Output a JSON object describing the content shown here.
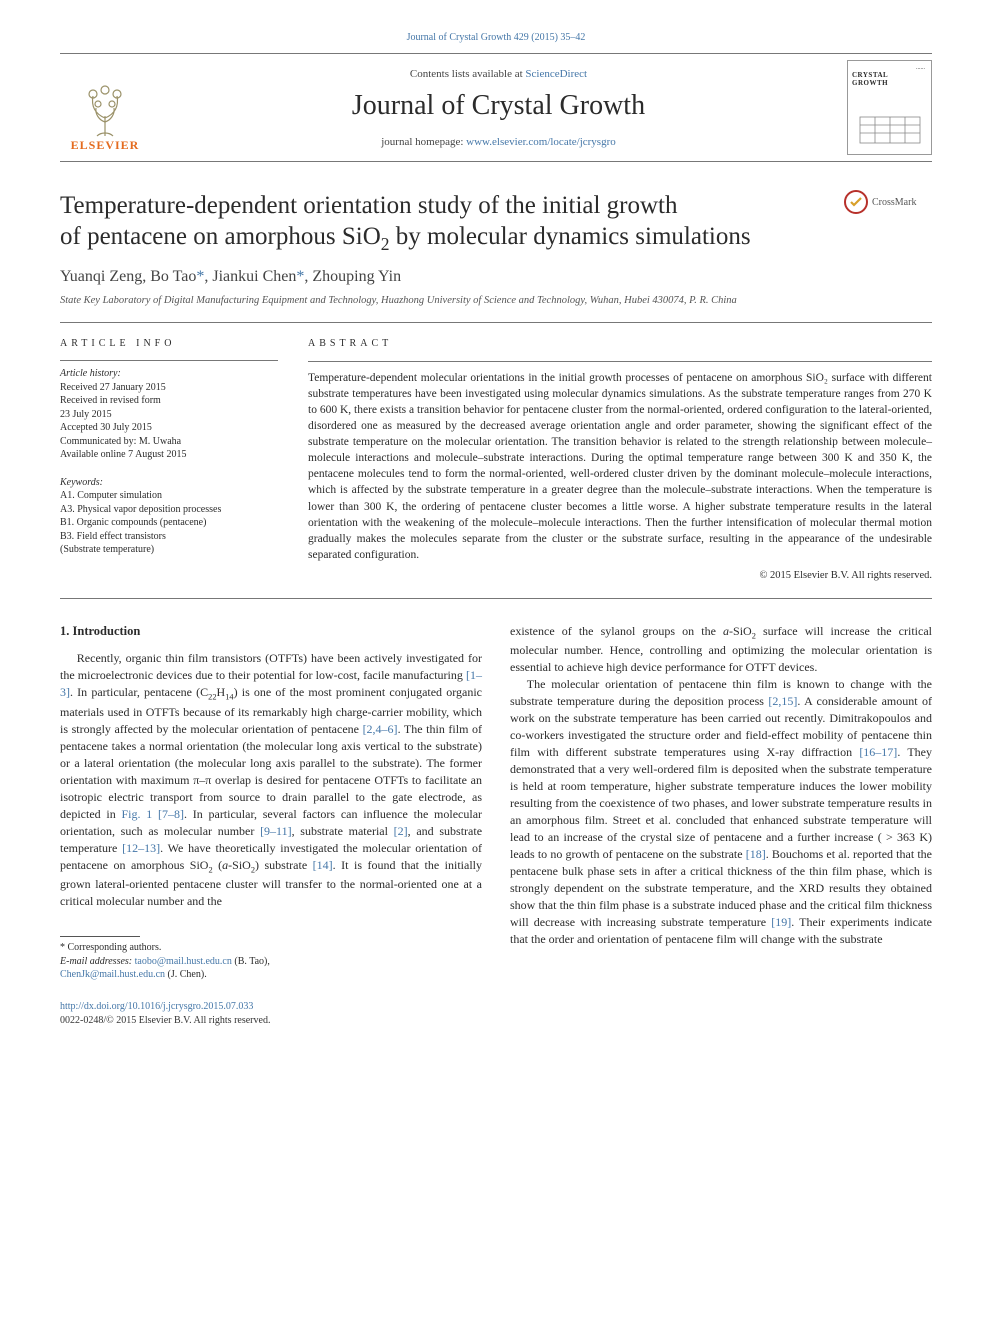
{
  "topLink": "Journal of Crystal Growth 429 (2015) 35–42",
  "masthead": {
    "contents_prefix": "Contents lists available at ",
    "contents_link": "ScienceDirect",
    "journal_title": "Journal of Crystal Growth",
    "homepage_prefix": "journal homepage: ",
    "homepage_link": "www.elsevier.com/locate/jcrysgro",
    "elsevier_label": "ELSEVIER",
    "cover_label": "CRYSTAL GROWTH",
    "cover_dots": "......"
  },
  "crossmark_label": "CrossMark",
  "title_line1": "Temperature-dependent orientation study of the initial growth",
  "title_line2_a": "of pentacene on amorphous SiO",
  "title_line2_b": " by molecular dynamics simulations",
  "title_sub": "2",
  "authors": {
    "a1": "Yuanqi Zeng, Bo Tao",
    "a2": ", Jiankui Chen",
    "a3": ", Zhouping Yin",
    "ast": "*"
  },
  "affiliation": "State Key Laboratory of Digital Manufacturing Equipment and Technology, Huazhong University of Science and Technology, Wuhan, Hubei 430074, P. R. China",
  "info_head": "article info",
  "abs_head": "abstract",
  "history_head": "Article history:",
  "history": [
    "Received 27 January 2015",
    "Received in revised form",
    "23 July 2015",
    "Accepted 30 July 2015",
    "Communicated by: M. Uwaha",
    "Available online 7 August 2015"
  ],
  "kw_head": "Keywords:",
  "keywords": [
    "A1. Computer simulation",
    "A3. Physical vapor deposition processes",
    "B1. Organic compounds (pentacene)",
    "B3. Field effect transistors",
    "(Substrate temperature)"
  ],
  "abstract_text": "Temperature-dependent molecular orientations in the initial growth processes of pentacene on amorphous SiO₂ surface with different substrate temperatures have been investigated using molecular dynamics simulations. As the substrate temperature ranges from 270 K to 600 K, there exists a transition behavior for pentacene cluster from the normal-oriented, ordered configuration to the lateral-oriented, disordered one as measured by the decreased average orientation angle and order parameter, showing the significant effect of the substrate temperature on the molecular orientation. The transition behavior is related to the strength relationship between molecule–molecule interactions and molecule–substrate interactions. During the optimal temperature range between 300 K and 350 K, the pentacene molecules tend to form the normal-oriented, well-ordered cluster driven by the dominant molecule–molecule interactions, which is affected by the substrate temperature in a greater degree than the molecule–substrate interactions. When the temperature is lower than 300 K, the ordering of pentacene cluster becomes a little worse. A higher substrate temperature results in the lateral orientation with the weakening of the molecule–molecule interactions. Then the further intensification of molecular thermal motion gradually makes the molecules separate from the cluster or the substrate surface, resulting in the appearance of the undesirable separated configuration.",
  "abs_copyright": "© 2015 Elsevier B.V. All rights reserved.",
  "intro_head": "1.  Introduction",
  "col1_html": "Recently, organic thin film transistors (OTFTs) have been actively investigated for the microelectronic devices due to their potential for low-cost, facile manufacturing <a class='ref' data-name='citation-link' data-interactable='true'>[1–3]</a>. In particular, pentacene (C<sub>22</sub>H<sub>14</sub>) is one of the most prominent conjugated organic materials used in OTFTs because of its remarkably high charge-carrier mobility, which is strongly affected by the molecular orientation of pentacene <a class='ref' data-name='citation-link' data-interactable='true'>[2,4–6]</a>. The thin film of pentacene takes a normal orientation (the molecular long axis vertical to the substrate) or a lateral orientation (the molecular long axis parallel to the substrate). The former orientation with maximum π–π overlap is desired for pentacene OTFTs to facilitate an isotropic electric transport from source to drain parallel to the gate electrode, as depicted in <a class='ref' data-name='figure-link' data-interactable='true'>Fig. 1</a> <a class='ref' data-name='citation-link' data-interactable='true'>[7–8]</a>. In particular, several factors can influence the molecular orientation, such as molecular number <a class='ref' data-name='citation-link' data-interactable='true'>[9–11]</a>, substrate material <a class='ref' data-name='citation-link' data-interactable='true'>[2]</a>, and substrate temperature <a class='ref' data-name='citation-link' data-interactable='true'>[12–13]</a>. We have theoretically investigated the molecular orientation of pentacene on amorphous SiO<sub>2</sub> (<i>a</i>-SiO<sub>2</sub>) substrate <a class='ref' data-name='citation-link' data-interactable='true'>[14]</a>. It is found that the initially grown lateral-oriented pentacene cluster will transfer to the normal-oriented one at a critical molecular number and the",
  "col2_p1_html": "existence of the sylanol groups on the <i>a</i>-SiO<sub>2</sub> surface will increase the critical molecular number. Hence, controlling and optimizing the molecular orientation is essential to achieve high device performance for OTFT devices.",
  "col2_p2_html": "The molecular orientation of pentacene thin film is known to change with the substrate temperature during the deposition process <a class='ref' data-name='citation-link' data-interactable='true'>[2,15]</a>. A considerable amount of work on the substrate temperature has been carried out recently. Dimitrakopoulos and co-workers investigated the structure order and field-effect mobility of pentacene thin film with different substrate temperatures using X-ray diffraction <a class='ref' data-name='citation-link' data-interactable='true'>[16–17]</a>. They demonstrated that a very well-ordered film is deposited when the substrate temperature is held at room temperature, higher substrate temperature induces the lower mobility resulting from the coexistence of two phases, and lower substrate temperature results in an amorphous film. Street et al. concluded that enhanced substrate temperature will lead to an increase of the crystal size of pentacene and a further increase ( > 363 K) leads to no growth of pentacene on the substrate <a class='ref' data-name='citation-link' data-interactable='true'>[18]</a>. Bouchoms et al. reported that the pentacene bulk phase sets in after a critical thickness of the thin film phase, which is strongly dependent on the substrate temperature, and the XRD results they obtained show that the thin film phase is a substrate induced phase and the critical film thickness will decrease with increasing substrate temperature <a class='ref' data-name='citation-link' data-interactable='true'>[19]</a>. Their experiments indicate that the order and orientation of pentacene film will change with the substrate",
  "footnote": {
    "corr": "* Corresponding authors.",
    "email_label": "E-mail addresses: ",
    "email1": "taobo@mail.hust.edu.cn",
    "email1_who": " (B. Tao),",
    "email2": "ChenJk@mail.hust.edu.cn",
    "email2_who": " (J. Chen)."
  },
  "doi": "http://dx.doi.org/10.1016/j.jcrysgro.2015.07.033",
  "issn_copy": "0022-0248/© 2015 Elsevier B.V. All rights reserved."
}
